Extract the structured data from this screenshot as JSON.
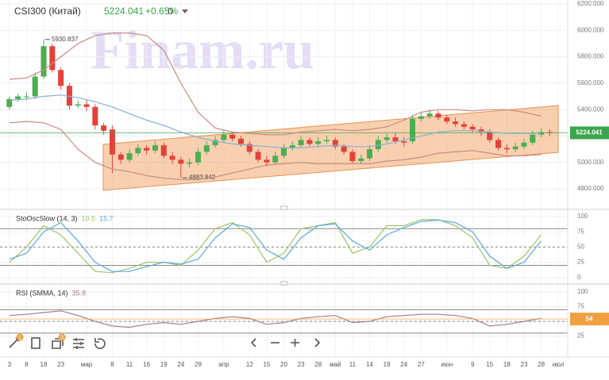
{
  "header": {
    "symbol": "CSI300 (Китай)",
    "price": "5224.041",
    "change": "+0.65%",
    "interval": "D"
  },
  "watermark": "Finam.ru",
  "toolbar": {
    "badges": [
      "1",
      "3"
    ]
  },
  "chart_data": [
    {
      "type": "candlestick",
      "up_color": "#4cae4f",
      "down_color": "#e3423b",
      "xlim": [
        -1,
        65
      ],
      "ylim": [
        4656,
        6230
      ],
      "yticks": [
        {
          "value": 4800,
          "label": "4800.000"
        },
        {
          "value": 5000,
          "label": "5000.000"
        },
        {
          "value": 5200,
          "label": "5200.000"
        },
        {
          "value": 5400,
          "label": "5400.000"
        },
        {
          "value": 5600,
          "label": "5600.000"
        },
        {
          "value": 5800,
          "label": "5800.000"
        },
        {
          "value": 6000,
          "label": "6000.000"
        },
        {
          "value": 6200,
          "label": "6200.000"
        }
      ],
      "xticks": [
        {
          "value": 0,
          "label": "3"
        },
        {
          "value": 2,
          "label": "8"
        },
        {
          "value": 4,
          "label": "18"
        },
        {
          "value": 6,
          "label": "23"
        },
        {
          "value": 9,
          "label": "мар"
        },
        {
          "value": 12,
          "label": "8"
        },
        {
          "value": 14,
          "label": "11"
        },
        {
          "value": 16,
          "label": "16"
        },
        {
          "value": 18,
          "label": "19"
        },
        {
          "value": 20,
          "label": "24"
        },
        {
          "value": 22,
          "label": "29"
        },
        {
          "value": 25,
          "label": "апр"
        },
        {
          "value": 28,
          "label": "12"
        },
        {
          "value": 30,
          "label": "15"
        },
        {
          "value": 32,
          "label": "20"
        },
        {
          "value": 34,
          "label": "23"
        },
        {
          "value": 36,
          "label": "28"
        },
        {
          "value": 38,
          "label": "май"
        },
        {
          "value": 40,
          "label": "11"
        },
        {
          "value": 42,
          "label": "14"
        },
        {
          "value": 44,
          "label": "19"
        },
        {
          "value": 46,
          "label": "24"
        },
        {
          "value": 48,
          "label": "27"
        },
        {
          "value": 51,
          "label": "июн"
        },
        {
          "value": 54,
          "label": "9"
        },
        {
          "value": 56,
          "label": "15"
        },
        {
          "value": 58,
          "label": "18"
        },
        {
          "value": 60,
          "label": "23"
        },
        {
          "value": 62,
          "label": "28"
        },
        {
          "value": 64,
          "label": "июл"
        }
      ],
      "open": [
        5420,
        5480,
        5500,
        5500,
        5650,
        5880,
        5700,
        5580,
        5430,
        5440,
        5420,
        5280,
        5250,
        5060,
        5020,
        5070,
        5110,
        5090,
        5130,
        5050,
        5020,
        4990,
        5000,
        5080,
        5130,
        5170,
        5210,
        5180,
        5140,
        5080,
        5020,
        5000,
        5050,
        5110,
        5130,
        5170,
        5140,
        5160,
        5170,
        5120,
        5080,
        5010,
        5030,
        5100,
        5170,
        5190,
        5160,
        5160,
        5330,
        5350,
        5370,
        5340,
        5310,
        5290,
        5270,
        5250,
        5230,
        5170,
        5110,
        5100,
        5120,
        5150,
        5210,
        5230
      ],
      "high": [
        5500,
        5520,
        5530,
        5680,
        5930.837,
        5900,
        5720,
        5600,
        5470,
        5470,
        5440,
        5300,
        5280,
        5080,
        5100,
        5140,
        5130,
        5160,
        5150,
        5080,
        5040,
        5030,
        5110,
        5160,
        5200,
        5240,
        5230,
        5200,
        5160,
        5100,
        5050,
        5080,
        5140,
        5160,
        5200,
        5190,
        5190,
        5200,
        5190,
        5140,
        5100,
        5060,
        5130,
        5200,
        5220,
        5220,
        5190,
        5360,
        5380,
        5400,
        5390,
        5360,
        5340,
        5310,
        5290,
        5270,
        5250,
        5190,
        5140,
        5150,
        5180,
        5240,
        5260,
        5250
      ],
      "low": [
        5400,
        5460,
        5470,
        5480,
        5630,
        5680,
        5550,
        5400,
        5410,
        5390,
        5250,
        5210,
        4920,
        4990,
        5000,
        5050,
        5060,
        5070,
        5030,
        4990,
        4883.842,
        4960,
        4980,
        5060,
        5110,
        5150,
        5160,
        5120,
        5060,
        5000,
        4970,
        4980,
        5030,
        5090,
        5110,
        5120,
        5120,
        5140,
        5100,
        5060,
        4990,
        4990,
        5010,
        5080,
        5150,
        5140,
        5120,
        5140,
        5310,
        5330,
        5320,
        5290,
        5270,
        5250,
        5230,
        5200,
        5150,
        5090,
        5070,
        5080,
        5100,
        5130,
        5190,
        5200
      ],
      "close": [
        5480,
        5500,
        5500,
        5650,
        5880,
        5700,
        5580,
        5430,
        5440,
        5420,
        5280,
        5240,
        5060,
        5020,
        5070,
        5110,
        5090,
        5130,
        5050,
        5020,
        4990,
        5000,
        5080,
        5130,
        5170,
        5210,
        5180,
        5140,
        5080,
        5020,
        5000,
        5050,
        5110,
        5130,
        5170,
        5140,
        5160,
        5170,
        5120,
        5080,
        5010,
        5030,
        5100,
        5170,
        5190,
        5160,
        5150,
        5330,
        5350,
        5370,
        5340,
        5310,
        5290,
        5270,
        5250,
        5230,
        5170,
        5110,
        5100,
        5120,
        5150,
        5210,
        5230,
        5224.041
      ],
      "last_label": {
        "value": 5224.041,
        "label": "5224.041"
      },
      "last_color": "#3aa54a"
    },
    {
      "type": "line",
      "xlim": [
        -1,
        65
      ],
      "ylim": [
        4656,
        6230
      ],
      "x": [
        0,
        2,
        4,
        6,
        8,
        10,
        12,
        14,
        16,
        18,
        20,
        22,
        24,
        26,
        28,
        30,
        32,
        34,
        36,
        38,
        40,
        42,
        44,
        46,
        48,
        50,
        52,
        54,
        56,
        58,
        60,
        62
      ],
      "series": [
        {
          "color": "#c98a84",
          "values": [
            5630,
            5640,
            5700,
            5800,
            5900,
            5960,
            5980,
            5980,
            5960,
            5850,
            5600,
            5380,
            5260,
            5230,
            5220,
            5210,
            5210,
            5230,
            5240,
            5250,
            5240,
            5250,
            5270,
            5320,
            5380,
            5400,
            5400,
            5390,
            5400,
            5400,
            5380,
            5350
          ]
        },
        {
          "color": "#86aed3",
          "values": [
            5470,
            5480,
            5500,
            5510,
            5490,
            5460,
            5420,
            5370,
            5320,
            5280,
            5230,
            5190,
            5160,
            5140,
            5130,
            5120,
            5110,
            5110,
            5120,
            5130,
            5120,
            5120,
            5140,
            5170,
            5200,
            5230,
            5240,
            5240,
            5230,
            5220,
            5220,
            5220
          ]
        },
        {
          "color": "#c98a84",
          "values": [
            5300,
            5310,
            5300,
            5250,
            5100,
            5000,
            4950,
            4930,
            4900,
            4880,
            4870,
            4870,
            4890,
            4920,
            4950,
            4980,
            4990,
            5000,
            4990,
            4990,
            4990,
            4990,
            5010,
            5020,
            5040,
            5070,
            5080,
            5090,
            5070,
            5050,
            5050,
            5060
          ]
        }
      ]
    },
    {
      "type": "line",
      "title": "StoOscSlow (14, 3)",
      "readout": [
        10.5,
        15.7
      ],
      "xlim": [
        -1,
        65
      ],
      "ylim": [
        -8,
        109
      ],
      "yticks": [
        0,
        25,
        50,
        75,
        100
      ],
      "levels": [
        20,
        50,
        80
      ],
      "x": [
        0,
        2,
        4,
        6,
        8,
        10,
        12,
        14,
        16,
        18,
        20,
        22,
        24,
        26,
        28,
        30,
        32,
        34,
        36,
        38,
        40,
        42,
        44,
        46,
        48,
        50,
        52,
        54,
        56,
        58,
        60,
        62
      ],
      "series": [
        {
          "color": "#9cc46a",
          "values": [
            25,
            50,
            85,
            70,
            40,
            10,
            8,
            15,
            25,
            25,
            20,
            45,
            80,
            90,
            70,
            25,
            40,
            80,
            85,
            90,
            40,
            50,
            85,
            85,
            95,
            95,
            85,
            65,
            20,
            15,
            35,
            70
          ]
        },
        {
          "color": "#5aaad8",
          "values": [
            30,
            40,
            75,
            90,
            60,
            25,
            10,
            10,
            18,
            25,
            22,
            30,
            65,
            88,
            82,
            45,
            30,
            65,
            85,
            88,
            60,
            45,
            70,
            82,
            92,
            94,
            90,
            75,
            35,
            15,
            25,
            60
          ]
        }
      ]
    },
    {
      "type": "line",
      "title": "RSI (SMMA, 14)",
      "readout": [
        35.8
      ],
      "xlim": [
        -1,
        65
      ],
      "ylim": [
        -8,
        111
      ],
      "yticks": [
        25,
        50,
        75,
        100
      ],
      "levels": [
        30,
        50,
        70
      ],
      "x": [
        0,
        2,
        4,
        6,
        8,
        10,
        12,
        14,
        16,
        18,
        20,
        22,
        24,
        26,
        28,
        30,
        32,
        34,
        36,
        38,
        40,
        42,
        44,
        46,
        48,
        50,
        52,
        54,
        56,
        58,
        60,
        62
      ],
      "series": [
        {
          "color": "#a87a8c",
          "values": [
            60,
            62,
            65,
            68,
            60,
            50,
            42,
            40,
            45,
            48,
            45,
            50,
            55,
            58,
            55,
            45,
            48,
            55,
            58,
            60,
            48,
            50,
            58,
            60,
            62,
            62,
            60,
            55,
            42,
            45,
            50,
            55
          ]
        }
      ],
      "last_label": {
        "value": 54,
        "label": "54"
      },
      "last_color": "#f0a040"
    }
  ]
}
